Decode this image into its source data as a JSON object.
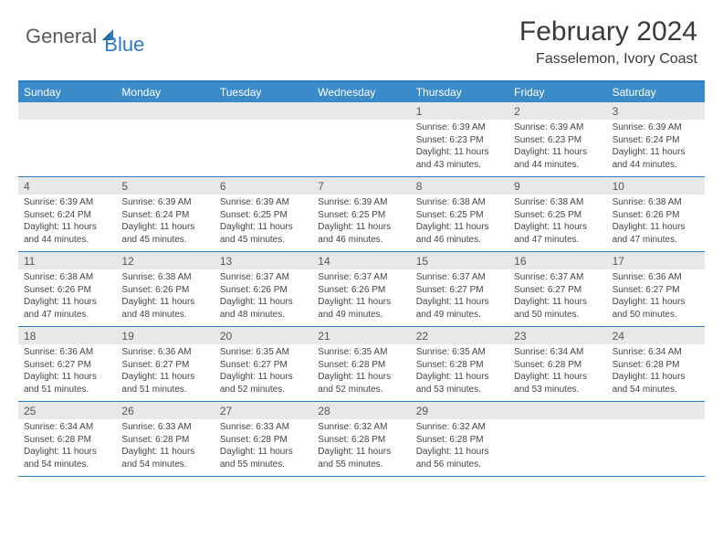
{
  "logo": {
    "part1": "General",
    "part2": "Blue"
  },
  "title": "February 2024",
  "location": "Fasselemon, Ivory Coast",
  "colors": {
    "header_bar": "#3b8bc8",
    "border": "#2b7bbf",
    "daynum_bg": "#e8e8e8",
    "text": "#333333",
    "logo_gray": "#5a5a5a",
    "logo_blue": "#2b7bbf",
    "background": "#ffffff"
  },
  "weekdays": [
    "Sunday",
    "Monday",
    "Tuesday",
    "Wednesday",
    "Thursday",
    "Friday",
    "Saturday"
  ],
  "weeks": [
    [
      {
        "n": "",
        "sr": "",
        "ss": "",
        "dl": ""
      },
      {
        "n": "",
        "sr": "",
        "ss": "",
        "dl": ""
      },
      {
        "n": "",
        "sr": "",
        "ss": "",
        "dl": ""
      },
      {
        "n": "",
        "sr": "",
        "ss": "",
        "dl": ""
      },
      {
        "n": "1",
        "sr": "Sunrise: 6:39 AM",
        "ss": "Sunset: 6:23 PM",
        "dl": "Daylight: 11 hours and 43 minutes."
      },
      {
        "n": "2",
        "sr": "Sunrise: 6:39 AM",
        "ss": "Sunset: 6:23 PM",
        "dl": "Daylight: 11 hours and 44 minutes."
      },
      {
        "n": "3",
        "sr": "Sunrise: 6:39 AM",
        "ss": "Sunset: 6:24 PM",
        "dl": "Daylight: 11 hours and 44 minutes."
      }
    ],
    [
      {
        "n": "4",
        "sr": "Sunrise: 6:39 AM",
        "ss": "Sunset: 6:24 PM",
        "dl": "Daylight: 11 hours and 44 minutes."
      },
      {
        "n": "5",
        "sr": "Sunrise: 6:39 AM",
        "ss": "Sunset: 6:24 PM",
        "dl": "Daylight: 11 hours and 45 minutes."
      },
      {
        "n": "6",
        "sr": "Sunrise: 6:39 AM",
        "ss": "Sunset: 6:25 PM",
        "dl": "Daylight: 11 hours and 45 minutes."
      },
      {
        "n": "7",
        "sr": "Sunrise: 6:39 AM",
        "ss": "Sunset: 6:25 PM",
        "dl": "Daylight: 11 hours and 46 minutes."
      },
      {
        "n": "8",
        "sr": "Sunrise: 6:38 AM",
        "ss": "Sunset: 6:25 PM",
        "dl": "Daylight: 11 hours and 46 minutes."
      },
      {
        "n": "9",
        "sr": "Sunrise: 6:38 AM",
        "ss": "Sunset: 6:25 PM",
        "dl": "Daylight: 11 hours and 47 minutes."
      },
      {
        "n": "10",
        "sr": "Sunrise: 6:38 AM",
        "ss": "Sunset: 6:26 PM",
        "dl": "Daylight: 11 hours and 47 minutes."
      }
    ],
    [
      {
        "n": "11",
        "sr": "Sunrise: 6:38 AM",
        "ss": "Sunset: 6:26 PM",
        "dl": "Daylight: 11 hours and 47 minutes."
      },
      {
        "n": "12",
        "sr": "Sunrise: 6:38 AM",
        "ss": "Sunset: 6:26 PM",
        "dl": "Daylight: 11 hours and 48 minutes."
      },
      {
        "n": "13",
        "sr": "Sunrise: 6:37 AM",
        "ss": "Sunset: 6:26 PM",
        "dl": "Daylight: 11 hours and 48 minutes."
      },
      {
        "n": "14",
        "sr": "Sunrise: 6:37 AM",
        "ss": "Sunset: 6:26 PM",
        "dl": "Daylight: 11 hours and 49 minutes."
      },
      {
        "n": "15",
        "sr": "Sunrise: 6:37 AM",
        "ss": "Sunset: 6:27 PM",
        "dl": "Daylight: 11 hours and 49 minutes."
      },
      {
        "n": "16",
        "sr": "Sunrise: 6:37 AM",
        "ss": "Sunset: 6:27 PM",
        "dl": "Daylight: 11 hours and 50 minutes."
      },
      {
        "n": "17",
        "sr": "Sunrise: 6:36 AM",
        "ss": "Sunset: 6:27 PM",
        "dl": "Daylight: 11 hours and 50 minutes."
      }
    ],
    [
      {
        "n": "18",
        "sr": "Sunrise: 6:36 AM",
        "ss": "Sunset: 6:27 PM",
        "dl": "Daylight: 11 hours and 51 minutes."
      },
      {
        "n": "19",
        "sr": "Sunrise: 6:36 AM",
        "ss": "Sunset: 6:27 PM",
        "dl": "Daylight: 11 hours and 51 minutes."
      },
      {
        "n": "20",
        "sr": "Sunrise: 6:35 AM",
        "ss": "Sunset: 6:27 PM",
        "dl": "Daylight: 11 hours and 52 minutes."
      },
      {
        "n": "21",
        "sr": "Sunrise: 6:35 AM",
        "ss": "Sunset: 6:28 PM",
        "dl": "Daylight: 11 hours and 52 minutes."
      },
      {
        "n": "22",
        "sr": "Sunrise: 6:35 AM",
        "ss": "Sunset: 6:28 PM",
        "dl": "Daylight: 11 hours and 53 minutes."
      },
      {
        "n": "23",
        "sr": "Sunrise: 6:34 AM",
        "ss": "Sunset: 6:28 PM",
        "dl": "Daylight: 11 hours and 53 minutes."
      },
      {
        "n": "24",
        "sr": "Sunrise: 6:34 AM",
        "ss": "Sunset: 6:28 PM",
        "dl": "Daylight: 11 hours and 54 minutes."
      }
    ],
    [
      {
        "n": "25",
        "sr": "Sunrise: 6:34 AM",
        "ss": "Sunset: 6:28 PM",
        "dl": "Daylight: 11 hours and 54 minutes."
      },
      {
        "n": "26",
        "sr": "Sunrise: 6:33 AM",
        "ss": "Sunset: 6:28 PM",
        "dl": "Daylight: 11 hours and 54 minutes."
      },
      {
        "n": "27",
        "sr": "Sunrise: 6:33 AM",
        "ss": "Sunset: 6:28 PM",
        "dl": "Daylight: 11 hours and 55 minutes."
      },
      {
        "n": "28",
        "sr": "Sunrise: 6:32 AM",
        "ss": "Sunset: 6:28 PM",
        "dl": "Daylight: 11 hours and 55 minutes."
      },
      {
        "n": "29",
        "sr": "Sunrise: 6:32 AM",
        "ss": "Sunset: 6:28 PM",
        "dl": "Daylight: 11 hours and 56 minutes."
      },
      {
        "n": "",
        "sr": "",
        "ss": "",
        "dl": ""
      },
      {
        "n": "",
        "sr": "",
        "ss": "",
        "dl": ""
      }
    ]
  ]
}
